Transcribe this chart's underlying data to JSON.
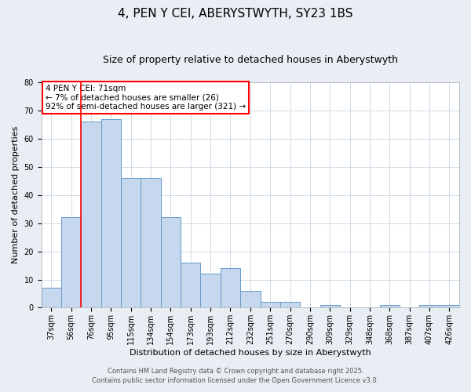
{
  "title": "4, PEN Y CEI, ABERYSTWYTH, SY23 1BS",
  "subtitle": "Size of property relative to detached houses in Aberystwyth",
  "xlabel": "Distribution of detached houses by size in Aberystwyth",
  "ylabel": "Number of detached properties",
  "bar_color": "#c5d8ee",
  "bar_edge_color": "#6699cc",
  "categories": [
    "37sqm",
    "56sqm",
    "76sqm",
    "95sqm",
    "115sqm",
    "134sqm",
    "154sqm",
    "173sqm",
    "193sqm",
    "212sqm",
    "232sqm",
    "251sqm",
    "270sqm",
    "290sqm",
    "309sqm",
    "329sqm",
    "348sqm",
    "368sqm",
    "387sqm",
    "407sqm",
    "426sqm"
  ],
  "values": [
    7,
    32,
    66,
    67,
    46,
    46,
    32,
    16,
    12,
    14,
    6,
    2,
    2,
    0,
    1,
    0,
    0,
    1,
    0,
    1,
    1
  ],
  "ylim": [
    0,
    80
  ],
  "yticks": [
    0,
    10,
    20,
    30,
    40,
    50,
    60,
    70,
    80
  ],
  "property_line_x": 1.5,
  "annotation_title": "4 PEN Y CEI: 71sqm",
  "annotation_line1": "← 7% of detached houses are smaller (26)",
  "annotation_line2": "92% of semi-detached houses are larger (321) →",
  "footer1": "Contains HM Land Registry data © Crown copyright and database right 2025.",
  "footer2": "Contains public sector information licensed under the Open Government Licence v3.0.",
  "background_color": "#e8eef4",
  "plot_background": "#ffffff",
  "grid_color": "#c8d4e0",
  "title_fontsize": 11,
  "subtitle_fontsize": 9,
  "axis_label_fontsize": 8,
  "tick_fontsize": 7,
  "annotation_fontsize": 7.5,
  "footer_fontsize": 6
}
